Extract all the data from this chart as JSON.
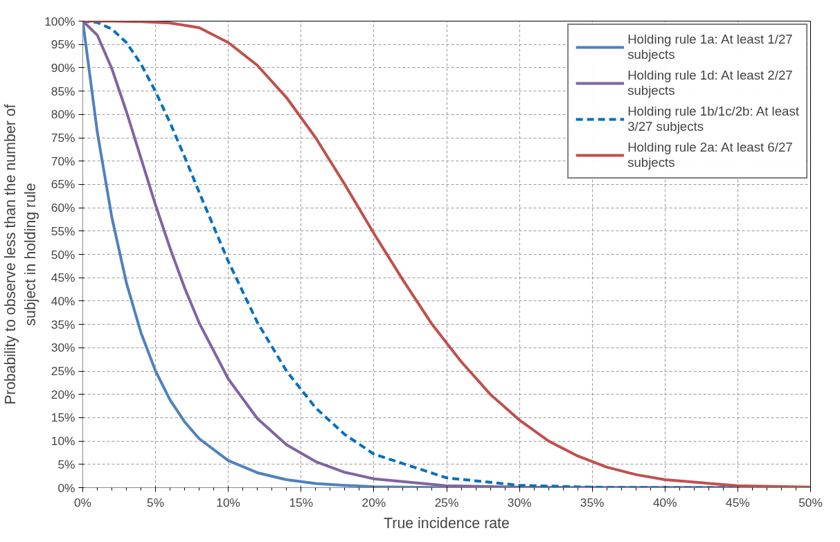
{
  "chart_data": {
    "type": "line",
    "xlabel": "True incidence rate",
    "ylabel": "Probability to observe less than the number of subject in holding rule",
    "xlim": [
      0,
      50
    ],
    "ylim": [
      0,
      100
    ],
    "xticks": [
      {
        "value": 0,
        "label": "0%"
      },
      {
        "value": 5,
        "label": "5%"
      },
      {
        "value": 10,
        "label": "10%"
      },
      {
        "value": 15,
        "label": "15%"
      },
      {
        "value": 20,
        "label": "20%"
      },
      {
        "value": 25,
        "label": "25%"
      },
      {
        "value": 30,
        "label": "30%"
      },
      {
        "value": 35,
        "label": "35%"
      },
      {
        "value": 40,
        "label": "40%"
      },
      {
        "value": 45,
        "label": "45%"
      },
      {
        "value": 50,
        "label": "50%"
      }
    ],
    "yticks": [
      {
        "value": 0,
        "label": "0%"
      },
      {
        "value": 5,
        "label": "5%"
      },
      {
        "value": 10,
        "label": "10%"
      },
      {
        "value": 15,
        "label": "15%"
      },
      {
        "value": 20,
        "label": "20%"
      },
      {
        "value": 25,
        "label": "25%"
      },
      {
        "value": 30,
        "label": "30%"
      },
      {
        "value": 35,
        "label": "35%"
      },
      {
        "value": 40,
        "label": "40%"
      },
      {
        "value": 45,
        "label": "45%"
      },
      {
        "value": 50,
        "label": "50%"
      },
      {
        "value": 55,
        "label": "55%"
      },
      {
        "value": 60,
        "label": "60%"
      },
      {
        "value": 65,
        "label": "65%"
      },
      {
        "value": 70,
        "label": "70%"
      },
      {
        "value": 75,
        "label": "75%"
      },
      {
        "value": 80,
        "label": "80%"
      },
      {
        "value": 85,
        "label": "85%"
      },
      {
        "value": 90,
        "label": "90%"
      },
      {
        "value": 95,
        "label": "95%"
      },
      {
        "value": 100,
        "label": "100%"
      }
    ],
    "grid": true,
    "legend": "top right",
    "marker": "none",
    "x": [
      0,
      1,
      2,
      3,
      4,
      5,
      6,
      7,
      8,
      10,
      12,
      14,
      16,
      18,
      20,
      25,
      30,
      35,
      40,
      45,
      50
    ],
    "series": [
      {
        "name": "Holding rule 1a: At least 1/27 subjects",
        "color": "#4f81bd",
        "line_style": "solid",
        "values": [
          100,
          76.2,
          57.9,
          43.9,
          33.2,
          25.0,
          18.8,
          14.1,
          10.5,
          5.8,
          3.2,
          1.7,
          0.9,
          0.5,
          0.2,
          0,
          0,
          0,
          0,
          0,
          0
        ]
      },
      {
        "name": "Holding rule 1d: At least 2/27 subjects",
        "color": "#8064a2",
        "line_style": "solid",
        "values": [
          100,
          97.0,
          89.8,
          80.6,
          70.6,
          60.6,
          51.3,
          42.8,
          35.3,
          23.3,
          14.8,
          9.2,
          5.6,
          3.3,
          1.9,
          0.4,
          0.1,
          0,
          0,
          0,
          0
        ]
      },
      {
        "name": "Holding rule 1b/1c/2b: At least 3/27 subjects",
        "color": "#0070c0",
        "line_style": "dashed",
        "values": [
          100,
          99.7,
          98.3,
          95.4,
          90.8,
          84.9,
          78.2,
          70.9,
          63.3,
          48.5,
          35.4,
          25.0,
          17.1,
          11.4,
          7.2,
          2.1,
          0.5,
          0.1,
          0,
          0,
          0
        ]
      },
      {
        "name": "Holding rule 2a: At least 6/27 subjects",
        "color": "#c0504d",
        "line_style": "solid",
        "x": [
          0,
          2,
          4,
          6,
          8,
          10,
          12,
          14,
          16,
          18,
          20,
          22,
          24,
          26,
          28,
          30,
          32,
          34,
          36,
          38,
          40,
          45,
          50
        ],
        "values": [
          100,
          100,
          99.9,
          99.6,
          98.6,
          95.4,
          90.5,
          83.6,
          75,
          65,
          54.5,
          44.5,
          35,
          27,
          20,
          14.5,
          10,
          6.8,
          4.4,
          2.8,
          1.7,
          0.4,
          0.1
        ]
      }
    ]
  }
}
